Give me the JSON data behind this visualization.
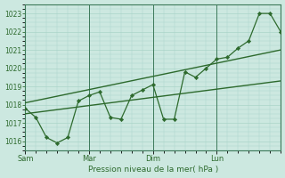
{
  "background_color": "#cce8e0",
  "grid_color": "#aad4c8",
  "line_color": "#2d6a2d",
  "xlabel": "Pression niveau de la mer( hPa )",
  "ylim": [
    1015.5,
    1023.5
  ],
  "yticks": [
    1016,
    1017,
    1018,
    1019,
    1020,
    1021,
    1022,
    1023
  ],
  "xtick_labels": [
    "Sam",
    "Mar",
    "Dim",
    "Lun"
  ],
  "xtick_positions": [
    0,
    24,
    48,
    72
  ],
  "xlim": [
    0,
    96
  ],
  "series1_x": [
    0,
    4,
    8,
    12,
    16,
    20,
    24,
    28,
    32,
    36,
    40,
    44,
    48,
    52,
    56,
    60,
    64,
    68,
    72,
    76,
    80,
    84,
    88,
    92,
    96
  ],
  "series1_y": [
    1017.8,
    1017.3,
    1016.2,
    1015.9,
    1016.2,
    1018.2,
    1018.5,
    1018.7,
    1017.3,
    1017.2,
    1018.5,
    1018.8,
    1019.1,
    1017.2,
    1017.2,
    1019.8,
    1019.5,
    1020.0,
    1020.5,
    1020.6,
    1021.1,
    1021.5,
    1023.0,
    1023.0,
    1022.0
  ],
  "series2_x": [
    0,
    96
  ],
  "series2_y": [
    1017.5,
    1019.3
  ],
  "series3_x": [
    0,
    96
  ],
  "series3_y": [
    1018.1,
    1021.0
  ],
  "vline_positions": [
    0,
    24,
    48,
    72
  ],
  "spine_color": "#3d7a5a"
}
